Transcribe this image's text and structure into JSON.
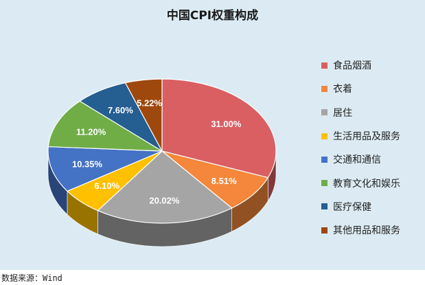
{
  "chart_data": {
    "type": "pie",
    "title": "中国CPI权重构成",
    "legend_position": "right",
    "slices": [
      {
        "label": "食品烟酒",
        "value": 31.0,
        "value_label": "31.00%",
        "color": "#d95f63"
      },
      {
        "label": "衣着",
        "value": 8.51,
        "value_label": "8.51%",
        "color": "#f4873b"
      },
      {
        "label": "居住",
        "value": 20.02,
        "value_label": "20.02%",
        "color": "#a5a5a5"
      },
      {
        "label": "生活用品及服务",
        "value": 6.1,
        "value_label": "6.10%",
        "color": "#ffc000"
      },
      {
        "label": "交通和通信",
        "value": 10.35,
        "value_label": "10.35%",
        "color": "#4472c4"
      },
      {
        "label": "教育文化和娱乐",
        "value": 11.2,
        "value_label": "11.20%",
        "color": "#70ad47"
      },
      {
        "label": "医疗保健",
        "value": 7.6,
        "value_label": "7.60%",
        "color": "#255e91"
      },
      {
        "label": "其他用品和服务",
        "value": 5.22,
        "value_label": "5.22%",
        "color": "#9e480e"
      }
    ]
  },
  "source_note": "数据来源：Wind"
}
